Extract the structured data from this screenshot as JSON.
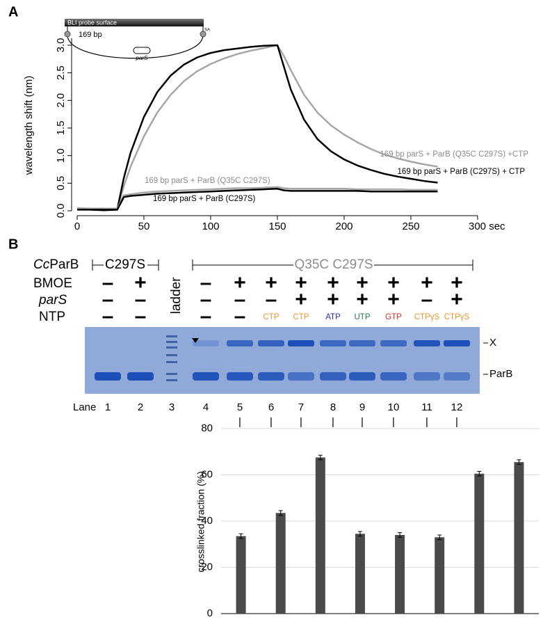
{
  "panel_labels": [
    "A",
    "B"
  ],
  "inset": {
    "surface": "BLI probe surface",
    "length": "169 bp",
    "site": "parS",
    "linker": "SA"
  },
  "chart_data": [
    {
      "type": "line",
      "ylabel": "wavelength shift (nm)",
      "x": [
        0,
        10,
        20,
        30,
        35,
        40,
        50,
        60,
        70,
        80,
        90,
        100,
        110,
        120,
        130,
        140,
        150,
        155,
        160,
        170,
        180,
        190,
        200,
        210,
        220,
        230,
        240,
        250,
        260,
        270
      ],
      "xlim": [
        0,
        300
      ],
      "xticks": [
        0,
        50,
        100,
        150,
        200,
        250,
        {
          "value": 300,
          "label": "300 sec"
        }
      ],
      "ylim": [
        0,
        3
      ],
      "yticks": [
        {
          "value": 0,
          "label": "0.0"
        },
        0.5,
        {
          "value": 1,
          "label": "1.0"
        },
        1.5,
        {
          "value": 2,
          "label": "2.0"
        },
        2.5,
        {
          "value": 3,
          "label": "3.0"
        }
      ],
      "series": [
        {
          "name": "169 bp parS + ParB (Q35C C297S) +CTP",
          "color": "#a6a6a6",
          "values": [
            0.05,
            0.04,
            0.03,
            0.02,
            0.45,
            0.8,
            1.35,
            1.78,
            2.1,
            2.35,
            2.53,
            2.66,
            2.76,
            2.84,
            2.9,
            2.95,
            3.0,
            2.8,
            2.55,
            2.1,
            1.78,
            1.55,
            1.38,
            1.24,
            1.12,
            1.02,
            0.95,
            0.89,
            0.84,
            0.8
          ]
        },
        {
          "name": "169 bp parS + ParB (C297S) + CTP",
          "color": "#000000",
          "values": [
            0.03,
            0.02,
            0.01,
            0.02,
            0.6,
            1.05,
            1.7,
            2.15,
            2.45,
            2.65,
            2.78,
            2.86,
            2.91,
            2.94,
            2.97,
            2.99,
            3.0,
            2.6,
            2.2,
            1.65,
            1.3,
            1.08,
            0.93,
            0.82,
            0.74,
            0.67,
            0.62,
            0.58,
            0.54,
            0.51
          ]
        },
        {
          "name": "169 bp parS + ParB (Q35C C297S)",
          "color": "#a6a6a6",
          "values": [
            0.04,
            0.04,
            0.04,
            0.04,
            0.28,
            0.3,
            0.33,
            0.35,
            0.36,
            0.37,
            0.38,
            0.39,
            0.4,
            0.41,
            0.41,
            0.42,
            0.43,
            0.41,
            0.4,
            0.4,
            0.4,
            0.4,
            0.4,
            0.39,
            0.39,
            0.39,
            0.39,
            0.38,
            0.38,
            0.38
          ]
        },
        {
          "name": "169 bp parS + ParB (C297S)",
          "color": "#000000",
          "values": [
            0.02,
            0.02,
            0.02,
            0.02,
            0.25,
            0.27,
            0.29,
            0.31,
            0.32,
            0.33,
            0.34,
            0.35,
            0.36,
            0.37,
            0.38,
            0.39,
            0.4,
            0.37,
            0.36,
            0.36,
            0.36,
            0.36,
            0.36,
            0.36,
            0.35,
            0.35,
            0.35,
            0.35,
            0.35,
            0.35
          ]
        }
      ]
    },
    {
      "type": "bar",
      "ylabel": "crosslinked fraction (%)",
      "values": [
        33.5,
        43.5,
        67.5,
        34.5,
        34,
        33,
        60.5,
        65.5
      ],
      "errors": [
        1,
        1,
        1,
        1,
        1,
        1,
        1,
        1
      ],
      "color": "#4a4a4a",
      "ylim": [
        0,
        80
      ],
      "yticks": [
        0,
        20,
        40,
        60,
        80
      ],
      "grid": true
    }
  ],
  "gel": {
    "row_labels": [
      [
        "Cc",
        "ParB"
      ],
      "BMOE",
      "parS",
      "NTP"
    ],
    "groups": [
      "C297S",
      "Q35C C297S"
    ],
    "ladder_label": "ladder",
    "lane_label": "Lane",
    "band_labels": [
      "X",
      "ParB"
    ],
    "lanes": [
      {
        "number": 1,
        "BMOE": "–",
        "parS": "–",
        "NTP": "–",
        "ntp_color": "#000000"
      },
      {
        "number": 2,
        "BMOE": "+",
        "parS": "–",
        "NTP": "–",
        "ntp_color": "#000000"
      },
      {
        "number": 3,
        "BMOE": null,
        "parS": null,
        "NTP": null,
        "ntp_color": null
      },
      {
        "number": 4,
        "BMOE": "–",
        "parS": "–",
        "NTP": "–",
        "ntp_color": "#000000"
      },
      {
        "number": 5,
        "BMOE": "+",
        "parS": "–",
        "NTP": "–",
        "ntp_color": "#000000"
      },
      {
        "number": 6,
        "BMOE": "+",
        "parS": "–",
        "NTP": "CTP",
        "ntp_color": "#e8962a"
      },
      {
        "number": 7,
        "BMOE": "+",
        "parS": "+",
        "NTP": "CTP",
        "ntp_color": "#e8962a"
      },
      {
        "number": 8,
        "BMOE": "+",
        "parS": "+",
        "NTP": "ATP",
        "ntp_color": "#2b2bc0"
      },
      {
        "number": 9,
        "BMOE": "+",
        "parS": "+",
        "NTP": "UTP",
        "ntp_color": "#1f7a4a"
      },
      {
        "number": 10,
        "BMOE": "+",
        "parS": "+",
        "NTP": "GTP",
        "ntp_color": "#d42a2a"
      },
      {
        "number": 11,
        "BMOE": "+",
        "parS": "–",
        "NTP": "CTPγS",
        "ntp_color": "#e8962a"
      },
      {
        "number": 12,
        "BMOE": "+",
        "parS": "+",
        "NTP": "CTPγS",
        "ntp_color": "#e8962a"
      }
    ]
  }
}
